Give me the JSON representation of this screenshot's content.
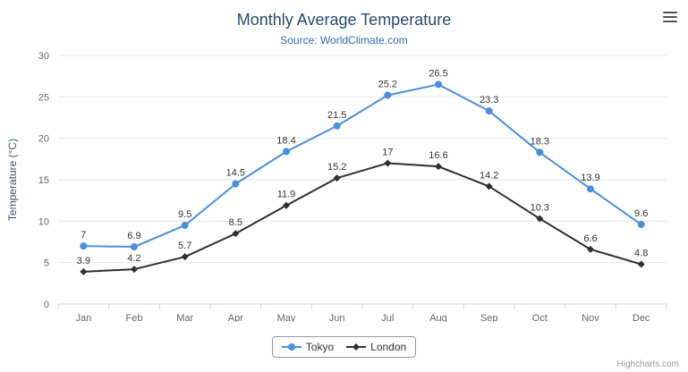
{
  "header": {
    "title": "Monthly Average Temperature",
    "subtitle": "Source: WorldClimate.com"
  },
  "menu": {
    "icon": "hamburger-menu-icon"
  },
  "credits": {
    "label": "Highcharts.com"
  },
  "legend": {
    "items": [
      {
        "label": "Tokyo"
      },
      {
        "label": "London"
      }
    ]
  },
  "colors": {
    "tokyo": "#4a8fdc",
    "london": "#2f2f33",
    "title": "#274b6d",
    "subtitle": "#2f6eb5",
    "grid": "#e6e6e6",
    "axis_line": "#ccd6eb",
    "axis_label": "#666666",
    "data_label": "#333333",
    "axis_title": "#3e576f"
  },
  "chart_data": {
    "type": "line",
    "title": "Monthly Average Temperature",
    "subtitle": "Source: WorldClimate.com",
    "categories": [
      "Jan",
      "Feb",
      "Mar",
      "Apr",
      "May",
      "Jun",
      "Jul",
      "Aug",
      "Sep",
      "Oct",
      "Nov",
      "Dec"
    ],
    "series": [
      {
        "name": "Tokyo",
        "color": "#4a8fdc",
        "marker": "circle",
        "values": [
          7,
          6.9,
          9.5,
          14.5,
          18.4,
          21.5,
          25.2,
          26.5,
          23.3,
          18.3,
          13.9,
          9.6
        ]
      },
      {
        "name": "London",
        "color": "#2f2f33",
        "marker": "diamond",
        "values": [
          3.9,
          4.2,
          5.7,
          8.5,
          11.9,
          15.2,
          17,
          16.6,
          14.2,
          10.3,
          6.6,
          4.8
        ]
      }
    ],
    "xlabel": "",
    "ylabel": "Temperature (°C)",
    "ylim": [
      0,
      30
    ],
    "yticks": [
      0,
      5,
      10,
      15,
      20,
      25,
      30
    ],
    "grid": true,
    "data_labels": true,
    "legend_position": "bottom"
  }
}
